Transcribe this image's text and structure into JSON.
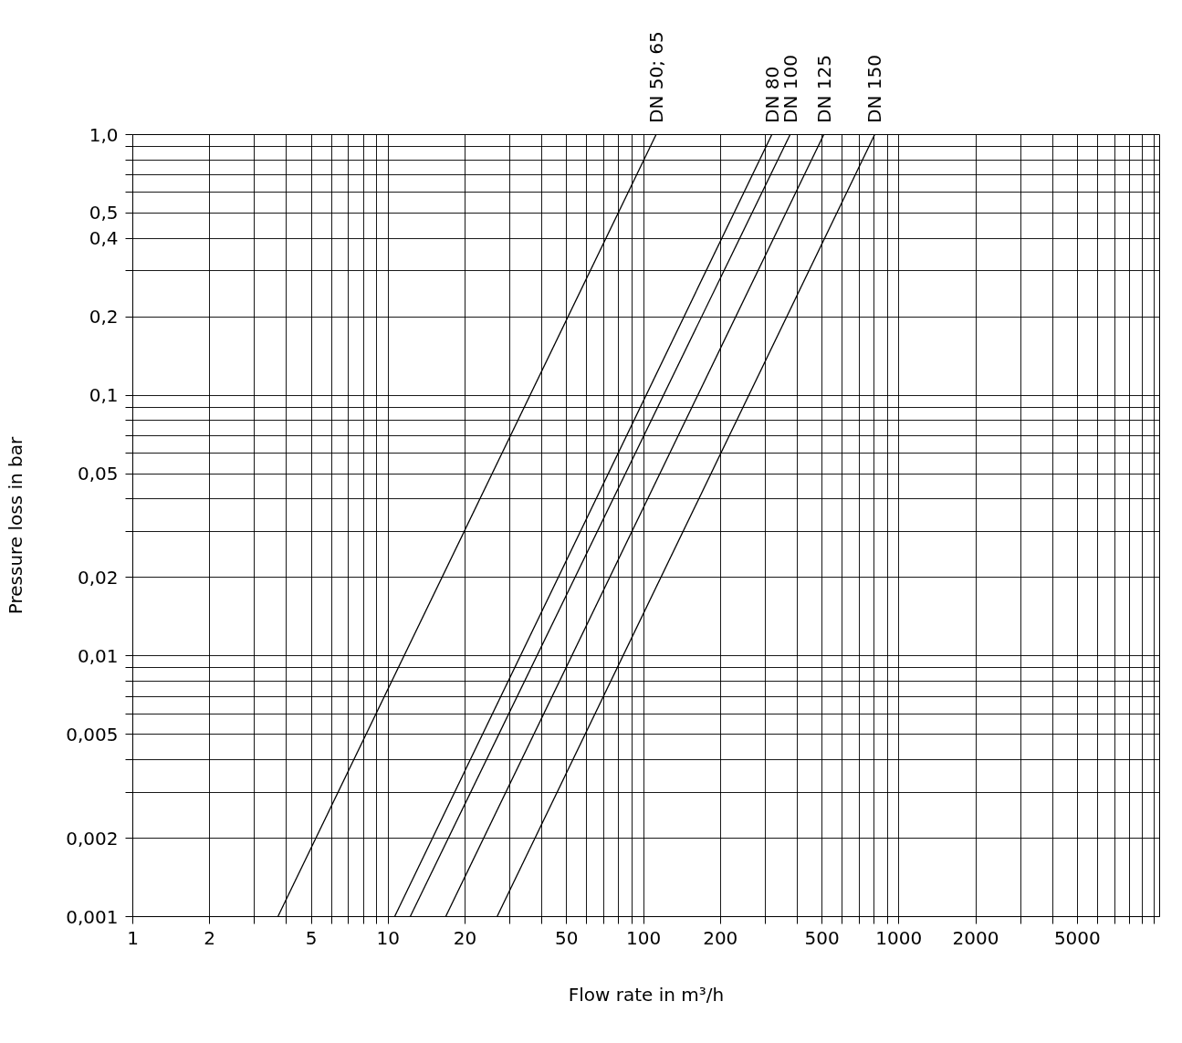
{
  "chart_data": {
    "type": "line",
    "xlabel": "Flow rate in m³/h",
    "ylabel": "Pressure loss in bar",
    "log": "xy",
    "grid": true,
    "legend": false,
    "marker": "none",
    "line_style": "solid",
    "xlim": [
      1,
      10500
    ],
    "ylim": [
      0.001,
      1.0
    ],
    "xticks": [
      1,
      2,
      {
        "value": 3,
        "label": null
      },
      {
        "value": 4,
        "label": null
      },
      5,
      {
        "value": 6,
        "label": null
      },
      {
        "value": 7,
        "label": null
      },
      {
        "value": 8,
        "label": null
      },
      {
        "value": 9,
        "label": null
      },
      10,
      20,
      {
        "value": 30,
        "label": null
      },
      {
        "value": 40,
        "label": null
      },
      50,
      {
        "value": 60,
        "label": null
      },
      {
        "value": 70,
        "label": null
      },
      {
        "value": 80,
        "label": null
      },
      {
        "value": 90,
        "label": null
      },
      100,
      200,
      {
        "value": 300,
        "label": null
      },
      {
        "value": 400,
        "label": null
      },
      500,
      {
        "value": 600,
        "label": null
      },
      {
        "value": 700,
        "label": null
      },
      {
        "value": 800,
        "label": null
      },
      {
        "value": 900,
        "label": null
      },
      1000,
      2000,
      {
        "value": 3000,
        "label": null
      },
      {
        "value": 4000,
        "label": null
      },
      5000,
      {
        "value": 6000,
        "label": null
      },
      {
        "value": 7000,
        "label": null
      },
      {
        "value": 8000,
        "label": null
      },
      {
        "value": 9000,
        "label": null
      },
      {
        "value": 10000,
        "label": null
      }
    ],
    "yticks": [
      {
        "value": 0.001,
        "label": "0,001"
      },
      {
        "value": 0.002,
        "label": "0,002"
      },
      {
        "value": 0.003,
        "label": null
      },
      {
        "value": 0.004,
        "label": null
      },
      {
        "value": 0.005,
        "label": "0,005"
      },
      {
        "value": 0.006,
        "label": null
      },
      {
        "value": 0.007,
        "label": null
      },
      {
        "value": 0.008,
        "label": null
      },
      {
        "value": 0.009,
        "label": null
      },
      {
        "value": 0.01,
        "label": "0,01"
      },
      {
        "value": 0.02,
        "label": "0,02"
      },
      {
        "value": 0.03,
        "label": null
      },
      {
        "value": 0.04,
        "label": null
      },
      {
        "value": 0.05,
        "label": "0,05"
      },
      {
        "value": 0.06,
        "label": null
      },
      {
        "value": 0.07,
        "label": null
      },
      {
        "value": 0.08,
        "label": null
      },
      {
        "value": 0.09,
        "label": null
      },
      {
        "value": 0.1,
        "label": "0,1"
      },
      {
        "value": 0.2,
        "label": "0,2"
      },
      {
        "value": 0.3,
        "label": null
      },
      {
        "value": 0.4,
        "label": "0,4"
      },
      {
        "value": 0.5,
        "label": "0,5"
      },
      {
        "value": 0.6,
        "label": null
      },
      {
        "value": 0.7,
        "label": null
      },
      {
        "value": 0.8,
        "label": null
      },
      {
        "value": 0.9,
        "label": null
      },
      {
        "value": 1.0,
        "label": "1,0"
      }
    ],
    "series": [
      {
        "name": "DN 50; 65",
        "color": "#000000",
        "x": [
          3.7,
          112
        ],
        "values": [
          0.001,
          1.0
        ]
      },
      {
        "name": "DN 80",
        "color": "#000000",
        "x": [
          10.6,
          318
        ],
        "values": [
          0.001,
          1.0
        ]
      },
      {
        "name": "DN 100",
        "color": "#000000",
        "x": [
          12.2,
          375
        ],
        "values": [
          0.001,
          1.0
        ]
      },
      {
        "name": "DN 125",
        "color": "#000000",
        "x": [
          16.8,
          508
        ],
        "values": [
          0.001,
          1.0
        ]
      },
      {
        "name": "DN 150",
        "color": "#000000",
        "x": [
          26.7,
          804
        ],
        "values": [
          0.001,
          1.0
        ]
      }
    ]
  }
}
